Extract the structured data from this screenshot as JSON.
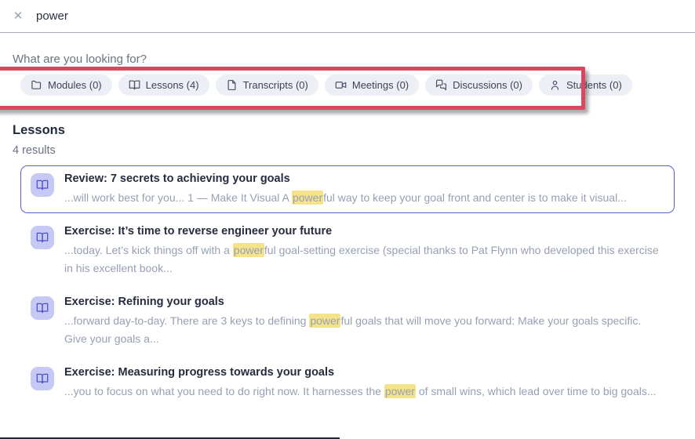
{
  "topbar": {
    "query": "power",
    "close_icon": "✕"
  },
  "prompt": "What are you looking for?",
  "filter_chips": [
    {
      "label": "Modules (0)",
      "icon": "folder-icon"
    },
    {
      "label": "Lessons (4)",
      "icon": "book-icon"
    },
    {
      "label": "Transcripts (0)",
      "icon": "transcript-icon"
    },
    {
      "label": "Meetings (0)",
      "icon": "video-icon"
    },
    {
      "label": "Discussions (0)",
      "icon": "chat-icon"
    },
    {
      "label": "Students (0)",
      "icon": "person-icon"
    }
  ],
  "section": {
    "title": "Lessons",
    "result_count": "4 results"
  },
  "results": [
    {
      "title": "Review: 7 secrets to achieving your goals",
      "snippet_before": "...will work best for you... 1 — Make It Visual A ",
      "highlighted": "power",
      "snippet_after": "ful way to keep your goal front and center is to make it visual...",
      "selected": true
    },
    {
      "title": "Exercise: It’s time to reverse engineer your future",
      "snippet_before": "...today. Let’s kick things off with a ",
      "highlighted": "power",
      "snippet_after": "ful goal-setting exercise (special thanks to Pat Flynn who developed this exercise in his excellent book...",
      "selected": false
    },
    {
      "title": "Exercise: Refining your goals",
      "snippet_before": "...forward day-to-day. There are 3 keys to defining ",
      "highlighted": "power",
      "snippet_after": "ful goals that will move you forward: Make your goals specific. Give your goals a...",
      "selected": false
    },
    {
      "title": "Exercise: Measuring progress towards your goals",
      "snippet_before": "...you to focus on what you need to do right now. It harnesses the ",
      "highlighted": "power",
      "snippet_after": " of small wins, which lead over time to big goals...",
      "selected": false
    }
  ],
  "colors": {
    "accent": "#5a5fc8",
    "highlight": "#f5e38c",
    "annotation_red": "#d9485f",
    "chip_background": "#edeff6",
    "icon_tile_background": "#c5c9f4",
    "icon_tile_foreground": "#4c52c8"
  }
}
